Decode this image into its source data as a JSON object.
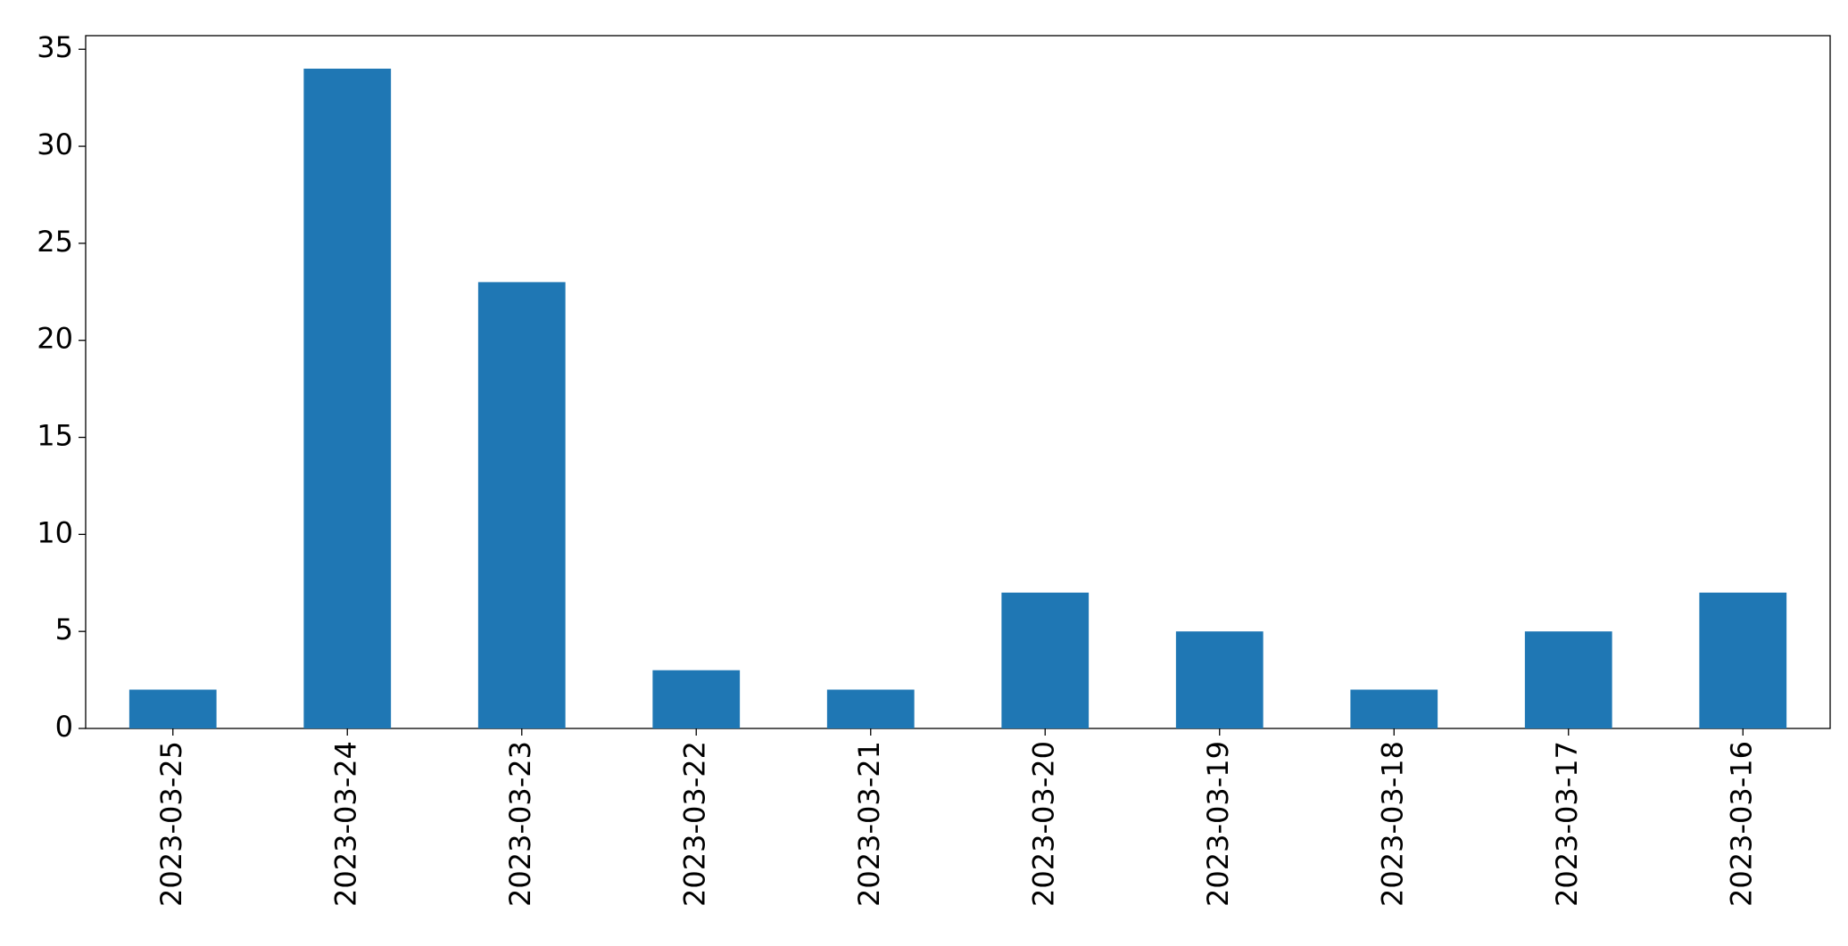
{
  "chart_data": {
    "type": "bar",
    "categories": [
      "2023-03-25",
      "2023-03-24",
      "2023-03-23",
      "2023-03-22",
      "2023-03-21",
      "2023-03-20",
      "2023-03-19",
      "2023-03-18",
      "2023-03-17",
      "2023-03-16"
    ],
    "values": [
      2,
      34,
      23,
      3,
      2,
      7,
      5,
      2,
      5,
      7
    ],
    "color": "#1f77b4",
    "ylim": [
      0,
      35.7
    ],
    "yticks": [
      0,
      5,
      10,
      15,
      20,
      25,
      30,
      35
    ],
    "grid": false
  }
}
